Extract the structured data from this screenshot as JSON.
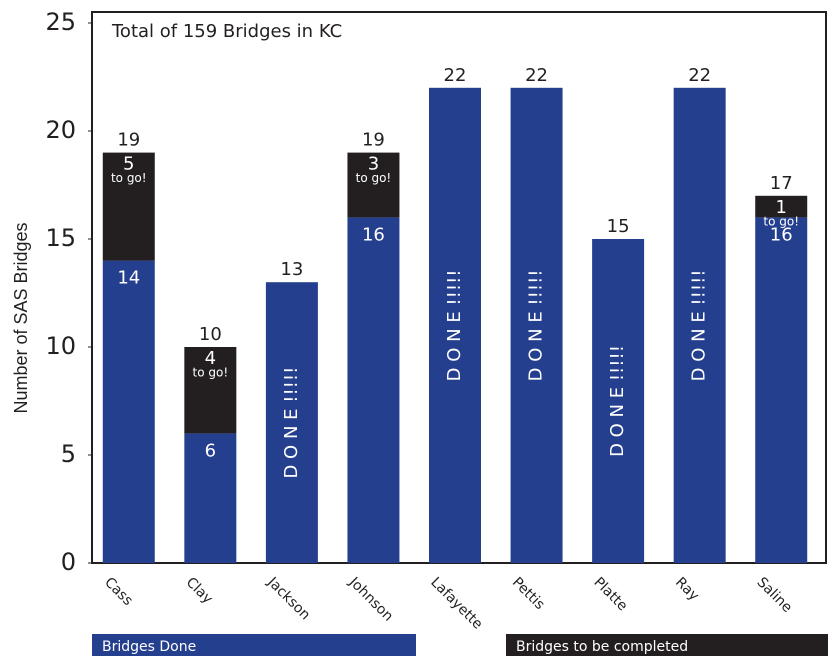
{
  "chart_data": {
    "type": "stacked_bar",
    "title": "Total of 159 Bridges in KC",
    "y_label": "Number of SAS Bridges",
    "categories": [
      "Cass",
      "Clay",
      "Jackson",
      "Johnson",
      "Lafayette",
      "Pettis",
      "Platte",
      "Ray",
      "Saline"
    ],
    "series": [
      {
        "name": "Bridges Done",
        "color": "#253f8f",
        "values": [
          14,
          6,
          13,
          16,
          22,
          22,
          15,
          22,
          16
        ]
      },
      {
        "name": "Bridges to be completed",
        "color": "#231f20",
        "values": [
          5,
          4,
          null,
          3,
          null,
          null,
          null,
          null,
          1
        ]
      }
    ],
    "totals": [
      19,
      10,
      13,
      19,
      22,
      22,
      15,
      22,
      17
    ],
    "to_go_label": "to go!",
    "done_label": "D O N E !!!!!",
    "ylim": [
      0,
      25
    ],
    "yticks": [
      0,
      5,
      10,
      15,
      20,
      25
    ],
    "grid": false
  }
}
